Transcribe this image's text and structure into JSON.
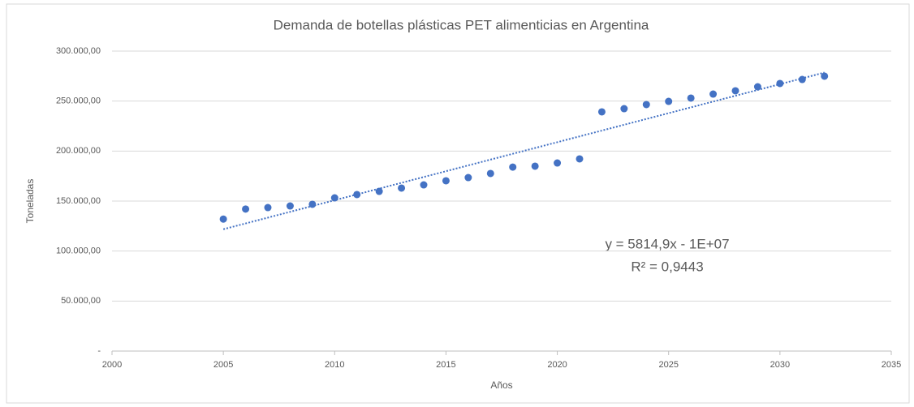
{
  "chart_data": {
    "type": "scatter",
    "title": "Demanda de botellas plásticas PET alimenticias en Argentina",
    "xlabel": "Años",
    "ylabel": "Toneladas",
    "annotations": [
      "y = 5814,9x - 1E+07",
      "R² = 0,9443"
    ],
    "color": "#4472c4",
    "trendline": true,
    "grid": true,
    "xlim": [
      2000,
      2035
    ],
    "xticks": [
      2000,
      2005,
      2010,
      2015,
      2020,
      2025,
      2030,
      2035
    ],
    "ylim": [
      0,
      300000
    ],
    "yticks": [
      {
        "value": 0,
        "label": "-"
      },
      {
        "value": 50000,
        "label": "50.000,00"
      },
      {
        "value": 100000,
        "label": "100.000,00"
      },
      {
        "value": 150000,
        "label": "150.000,00"
      },
      {
        "value": 200000,
        "label": "200.000,00"
      },
      {
        "value": 250000,
        "label": "250.000,00"
      },
      {
        "value": 300000,
        "label": "300.000,00"
      }
    ],
    "x": [
      2005,
      2006,
      2007,
      2008,
      2009,
      2010,
      2011,
      2012,
      2013,
      2014,
      2015,
      2016,
      2017,
      2018,
      2019,
      2020,
      2021,
      2022,
      2023,
      2024,
      2025,
      2026,
      2027,
      2028,
      2029,
      2030,
      2031,
      2032
    ],
    "values": [
      132000,
      142000,
      143500,
      145100,
      146800,
      153200,
      156500,
      159700,
      163000,
      166200,
      170300,
      173500,
      177600,
      184000,
      184900,
      188100,
      192200,
      239200,
      242400,
      246500,
      249700,
      253000,
      257000,
      260300,
      264300,
      267600,
      271600,
      274900
    ]
  }
}
